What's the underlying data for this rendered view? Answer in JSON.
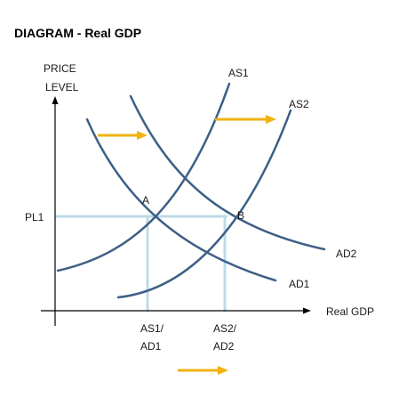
{
  "title": "DIAGRAM - Real GDP",
  "axes": {
    "y_label_line1": "PRICE",
    "y_label_line2": "LEVEL",
    "x_label": "Real GDP"
  },
  "curves": {
    "as1": "AS1",
    "as2": "AS2",
    "ad1": "AD1",
    "ad2": "AD2"
  },
  "points": {
    "a": "A",
    "b": "B"
  },
  "levels": {
    "pl1": "PL1"
  },
  "x_markers": {
    "first_line1": "AS1/",
    "first_line2": "AD1",
    "second_line1": "AS2/",
    "second_line2": "AD2"
  },
  "colors": {
    "curve": "#3d5f86",
    "guide": "#bcdbe8",
    "arrow": "#f2b10f",
    "axis": "#000000"
  }
}
